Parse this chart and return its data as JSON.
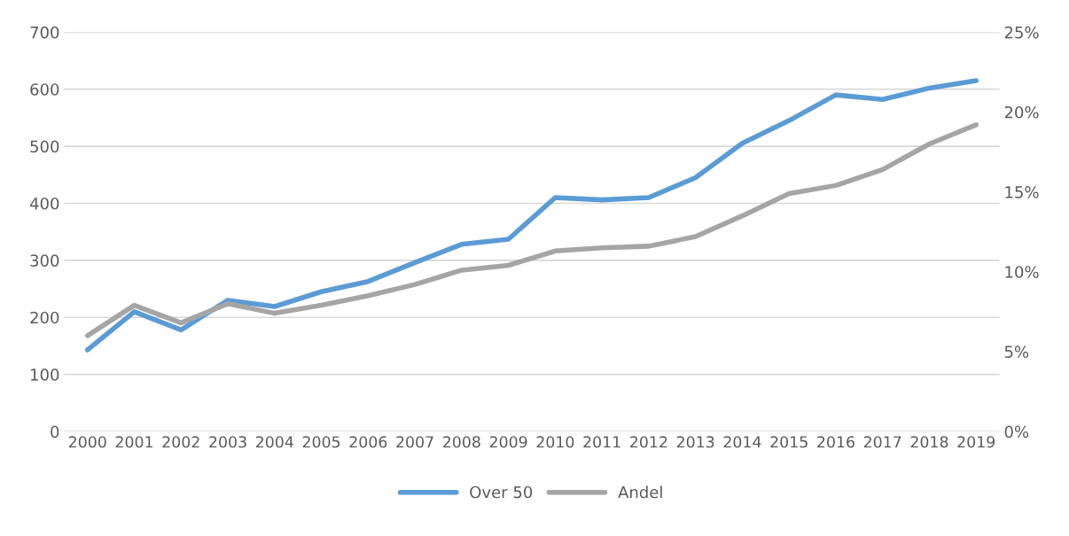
{
  "chart_data": {
    "type": "line",
    "categories": [
      "2000",
      "2001",
      "2002",
      "2003",
      "2004",
      "2005",
      "2006",
      "2007",
      "2008",
      "2009",
      "2010",
      "2011",
      "2012",
      "2013",
      "2014",
      "2015",
      "2016",
      "2017",
      "2018",
      "2019"
    ],
    "series": [
      {
        "name": "Over 50",
        "color": "#5b9bd5",
        "values": [
          143,
          210,
          178,
          230,
          219,
          245,
          263,
          296,
          328,
          337,
          410,
          406,
          410,
          445,
          505,
          545,
          590,
          582,
          602,
          615
        ]
      },
      {
        "name": "Andel",
        "color": "#a5a5a5",
        "axis": "y2",
        "values": [
          6.0,
          7.9,
          6.8,
          8.0,
          7.4,
          7.9,
          8.5,
          9.2,
          10.1,
          10.4,
          11.3,
          11.5,
          11.6,
          12.2,
          13.5,
          14.9,
          15.4,
          16.4,
          18.0,
          19.2
        ]
      }
    ],
    "ylim": [
      0,
      700
    ],
    "yticks": [
      0,
      100,
      200,
      300,
      400,
      500,
      600,
      700
    ],
    "y2lim": [
      0,
      25
    ],
    "y2ticks": [
      {
        "value": 0,
        "label": "0%"
      },
      {
        "value": 5,
        "label": "5%"
      },
      {
        "value": 10,
        "label": "10%"
      },
      {
        "value": 15,
        "label": "15%"
      },
      {
        "value": 20,
        "label": "20%"
      },
      {
        "value": 25,
        "label": "25%"
      }
    ],
    "grid": "y",
    "legend": "bottom",
    "marker": "none",
    "line_style": "solid"
  }
}
